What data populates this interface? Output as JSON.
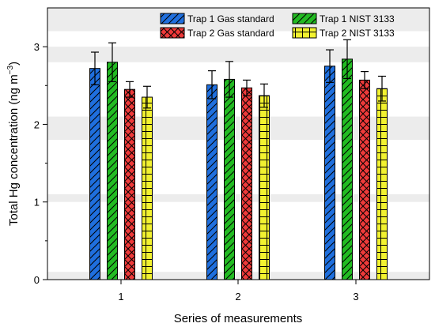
{
  "chart_data": {
    "type": "bar",
    "title": "",
    "xlabel": "Series of measurements",
    "ylabel_main": "Total Hg concentration (ng m",
    "ylabel_sup": "−3",
    "ylabel_close": ")",
    "categories": [
      "1",
      "2",
      "3"
    ],
    "ylim": [
      0,
      3.5
    ],
    "yticks": [
      "0",
      "1",
      "2",
      "3"
    ],
    "grid": "alternating horizontal bands",
    "legend_position": "top-right",
    "series": [
      {
        "name": "Trap 1 Gas standard",
        "color": "#1f6fde",
        "pattern": "diagonal",
        "values": [
          2.72,
          2.51,
          2.75
        ],
        "errors": [
          0.21,
          0.18,
          0.21
        ]
      },
      {
        "name": "Trap 1 NIST 3133",
        "color": "#22bb22",
        "pattern": "diagonal",
        "values": [
          2.8,
          2.58,
          2.84
        ],
        "errors": [
          0.25,
          0.23,
          0.25
        ]
      },
      {
        "name": "Trap 2 Gas standard",
        "color": "#ee3a3a",
        "pattern": "crosshatch",
        "values": [
          2.45,
          2.47,
          2.57
        ],
        "errors": [
          0.1,
          0.1,
          0.11
        ]
      },
      {
        "name": "Trap 2 NIST 3133",
        "color": "#f2f230",
        "pattern": "grid",
        "values": [
          2.35,
          2.37,
          2.46
        ],
        "errors": [
          0.14,
          0.15,
          0.16
        ]
      }
    ]
  }
}
